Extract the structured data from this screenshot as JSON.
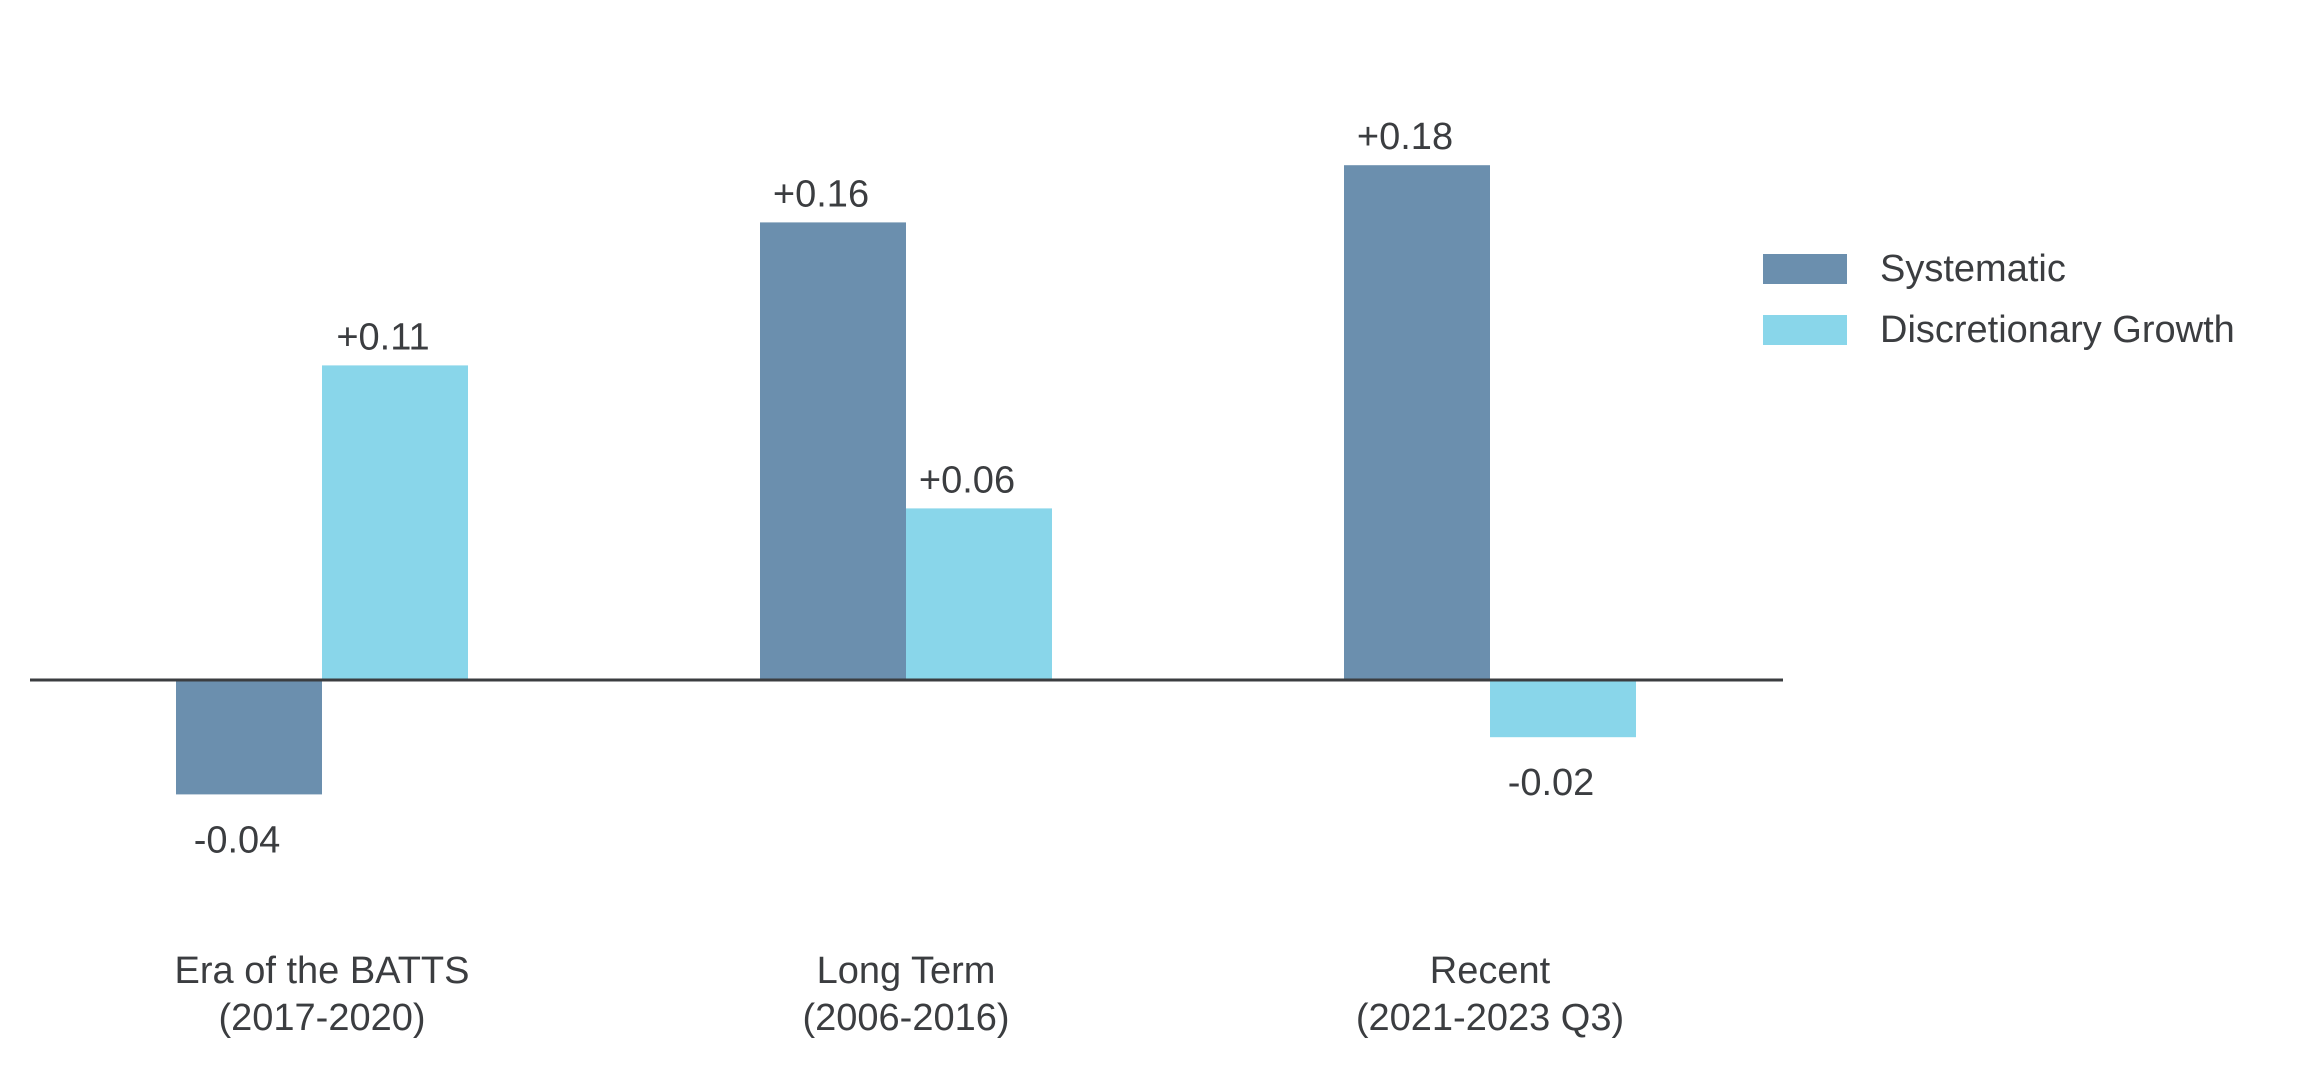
{
  "chart_data": {
    "type": "bar",
    "categories": [
      {
        "line1": "Era of the BATTS",
        "line2": "(2017-2020)"
      },
      {
        "line1": "Long Term",
        "line2": "(2006-2016)"
      },
      {
        "line1": "Recent",
        "line2": "(2021-2023 Q3)"
      }
    ],
    "series": [
      {
        "name": "Systematic",
        "color": "#6b8fae",
        "values": [
          -0.04,
          0.16,
          0.18
        ],
        "labels": [
          "-0.04",
          "+0.16",
          "+0.18"
        ]
      },
      {
        "name": "Discretionary Growth",
        "color": "#89d6ea",
        "values": [
          0.11,
          0.06,
          -0.02
        ],
        "labels": [
          "+0.11",
          "+0.06",
          "-0.02"
        ]
      }
    ],
    "ylim": [
      -0.04,
      0.18
    ],
    "legend_position": "right",
    "grid": false,
    "baseline_color": "#3b3d40"
  }
}
